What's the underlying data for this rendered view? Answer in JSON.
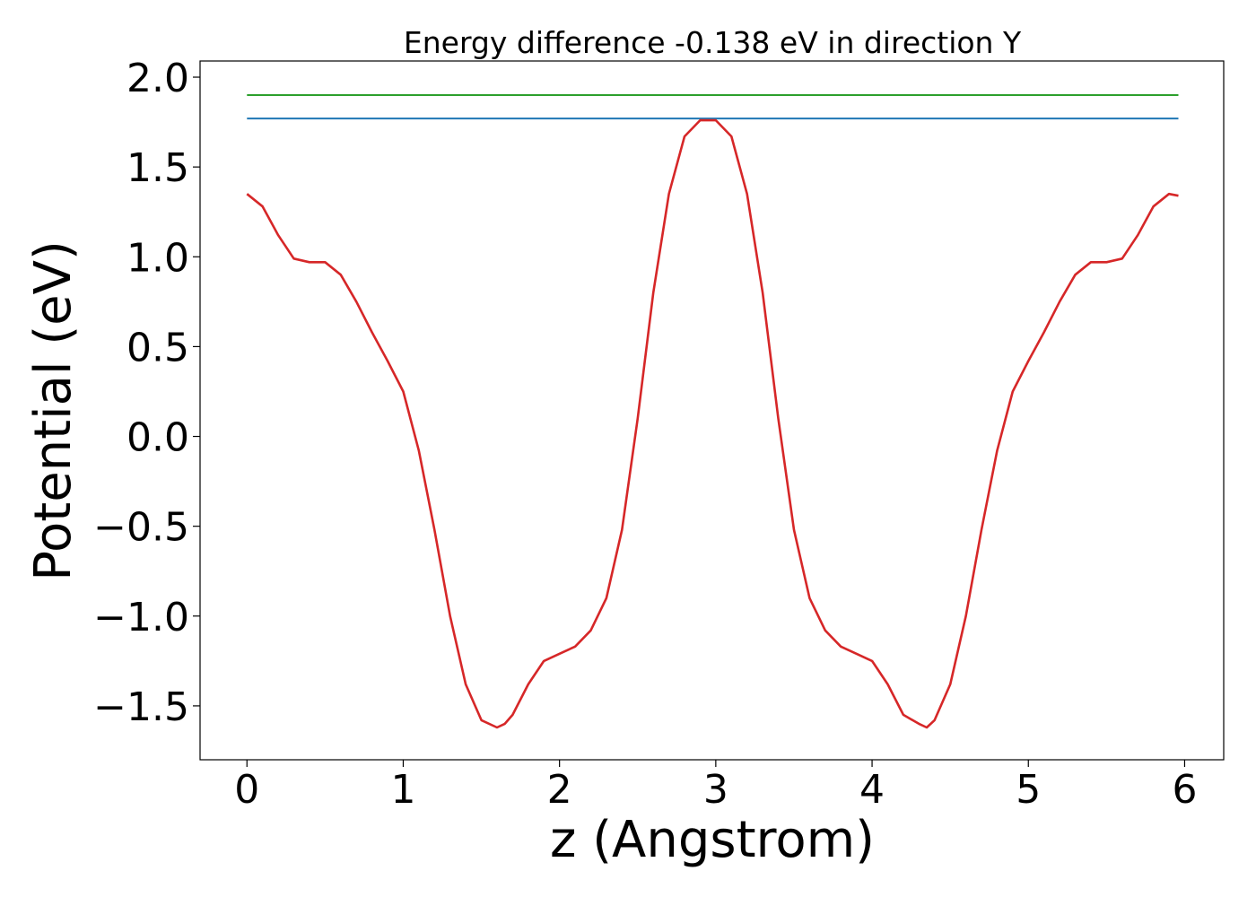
{
  "chart_data": {
    "type": "line",
    "title": "Energy difference -0.138 eV in direction Y",
    "xlabel": "z (Angstrom)",
    "ylabel": "Potential (eV)",
    "xlim": [
      -0.3,
      6.25
    ],
    "ylim": [
      -1.8,
      2.09
    ],
    "xticks": [
      0,
      1,
      2,
      3,
      4,
      5,
      6
    ],
    "xtick_labels": [
      "0",
      "1",
      "2",
      "3",
      "4",
      "5",
      "6"
    ],
    "yticks": [
      -1.5,
      -1.0,
      -0.5,
      0.0,
      0.5,
      1.0,
      1.5,
      2.0
    ],
    "ytick_labels": [
      "−1.5",
      "−1.0",
      "−0.5",
      "0.0",
      "0.5",
      "1.0",
      "1.5",
      "2.0"
    ],
    "grid": false,
    "series": [
      {
        "color": "#2ca02c",
        "x": [
          0,
          5.96
        ],
        "y": [
          1.9,
          1.9
        ]
      },
      {
        "color": "#1f77b4",
        "x": [
          0,
          5.96
        ],
        "y": [
          1.77,
          1.77
        ]
      },
      {
        "color": "#d62728",
        "x": [
          0.0,
          0.1,
          0.2,
          0.3,
          0.4,
          0.5,
          0.6,
          0.7,
          0.8,
          0.9,
          1.0,
          1.1,
          1.2,
          1.3,
          1.4,
          1.5,
          1.6,
          1.65,
          1.7,
          1.8,
          1.9,
          2.0,
          2.1,
          2.2,
          2.3,
          2.4,
          2.5,
          2.6,
          2.7,
          2.8,
          2.9,
          3.0,
          3.1,
          3.2,
          3.3,
          3.4,
          3.5,
          3.6,
          3.7,
          3.8,
          3.9,
          4.0,
          4.1,
          4.2,
          4.3,
          4.35,
          4.4,
          4.5,
          4.6,
          4.7,
          4.8,
          4.9,
          5.0,
          5.1,
          5.2,
          5.3,
          5.4,
          5.5,
          5.6,
          5.7,
          5.8,
          5.9,
          5.96
        ],
        "y": [
          1.35,
          1.28,
          1.12,
          0.99,
          0.97,
          0.97,
          0.9,
          0.75,
          0.58,
          0.42,
          0.25,
          -0.08,
          -0.52,
          -1.0,
          -1.38,
          -1.58,
          -1.62,
          -1.6,
          -1.55,
          -1.38,
          -1.25,
          -1.21,
          -1.17,
          -1.08,
          -0.9,
          -0.52,
          0.1,
          0.8,
          1.35,
          1.67,
          1.76,
          1.76,
          1.67,
          1.35,
          0.8,
          0.1,
          -0.52,
          -0.9,
          -1.08,
          -1.17,
          -1.21,
          -1.25,
          -1.38,
          -1.55,
          -1.6,
          -1.62,
          -1.58,
          -1.38,
          -1.0,
          -0.52,
          -0.08,
          0.25,
          0.42,
          0.58,
          0.75,
          0.9,
          0.97,
          0.97,
          0.99,
          1.12,
          1.28,
          1.35,
          1.34
        ]
      }
    ]
  }
}
